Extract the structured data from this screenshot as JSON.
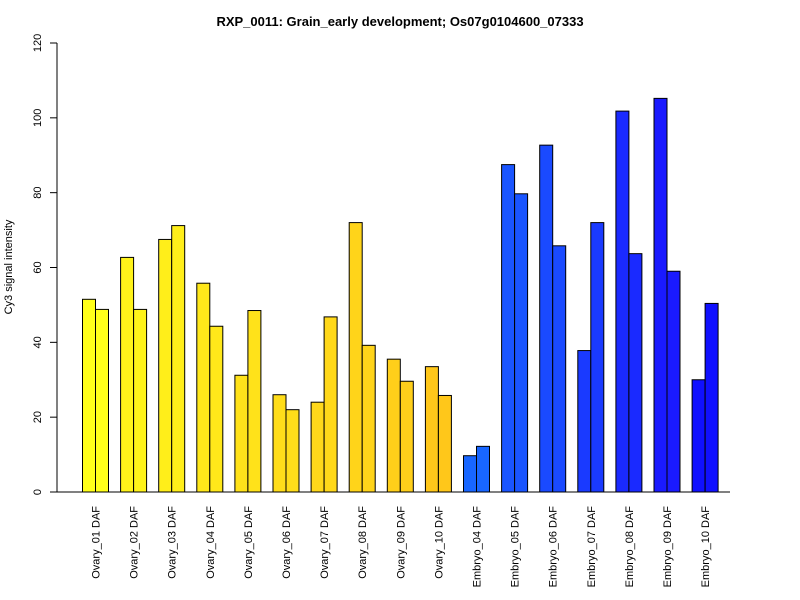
{
  "chart_data": {
    "type": "bar",
    "title": "RXP_0011: Grain_early development; Os07g0104600_07333",
    "xlabel": "",
    "ylabel": "Cy3 signal intensity",
    "ylim": [
      0,
      120
    ],
    "yticks": [
      0,
      20,
      40,
      60,
      80,
      100,
      120
    ],
    "grid": false,
    "categories": [
      "Ovary_01 DAF",
      "Ovary_02 DAF",
      "Ovary_03 DAF",
      "Ovary_04 DAF",
      "Ovary_05 DAF",
      "Ovary_06 DAF",
      "Ovary_07 DAF",
      "Ovary_08 DAF",
      "Ovary_09 DAF",
      "Ovary_10 DAF",
      "Embryo_04 DAF",
      "Embryo_05 DAF",
      "Embryo_06 DAF",
      "Embryo_07 DAF",
      "Embryo_08 DAF",
      "Embryo_09 DAF",
      "Embryo_10 DAF"
    ],
    "series": [
      {
        "values": [
          51.5,
          62.7,
          67.5,
          55.8,
          31.2,
          26.0,
          24.0,
          72.0,
          35.5,
          33.5,
          9.7,
          87.5,
          92.7,
          37.8,
          101.8,
          105.2,
          30.0
        ]
      },
      {
        "values": [
          48.8,
          48.8,
          71.2,
          44.3,
          48.5,
          22.0,
          46.8,
          39.2,
          29.6,
          25.8,
          12.2,
          79.7,
          65.8,
          72.0,
          63.7,
          59.0,
          50.4
        ]
      }
    ],
    "colors": [
      "#FFFF1A",
      "#FFF31A",
      "#FFEE1A",
      "#FFE81A",
      "#FFE21A",
      "#FFDD1A",
      "#FFD81A",
      "#FFD41A",
      "#FFCF1A",
      "#FFC71A",
      "#1866FF",
      "#1A55FF",
      "#1A4AFF",
      "#1A3AFF",
      "#1A2AFF",
      "#1A1AFF",
      "#1010FF"
    ]
  }
}
